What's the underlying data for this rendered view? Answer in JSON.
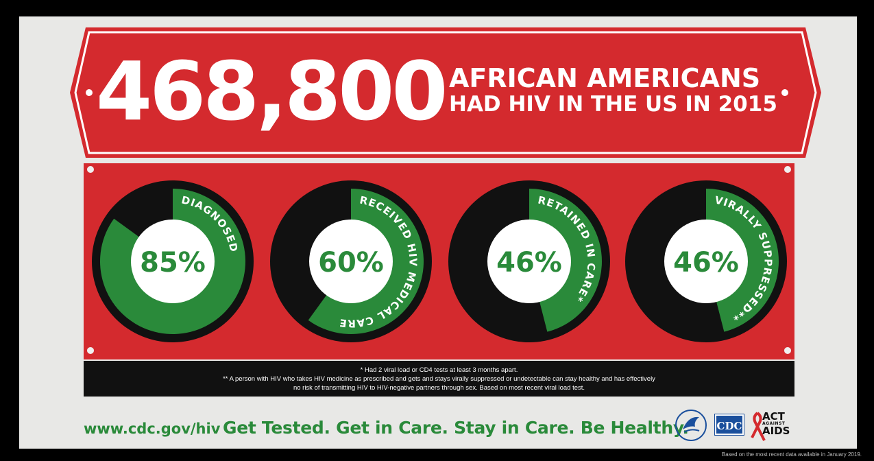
{
  "headline": {
    "number": "468,800",
    "caption_line1": "AFRICAN AMERICANS",
    "caption_line2": "HAD HIV IN THE US IN 2015"
  },
  "colors": {
    "red": "#d42a2e",
    "green": "#2a8a3a",
    "black": "#111111",
    "background": "#e8e8e6"
  },
  "gauges": [
    {
      "label": "DIAGNOSED",
      "percent_text": "85%",
      "value": 85
    },
    {
      "label": "RECEIVED HIV MEDICAL CARE",
      "percent_text": "60%",
      "value": 60
    },
    {
      "label": "RETAINED IN CARE*",
      "percent_text": "46%",
      "value": 46
    },
    {
      "label": "VIRALLY SUPPRESSED**",
      "percent_text": "46%",
      "value": 46
    }
  ],
  "footnotes": {
    "note1": "* Had 2 viral load or CD4 tests at least 3 months apart.",
    "note2": "** A person with HIV who takes HIV medicine as prescribed and gets and stays virally suppressed or undetectable can stay healthy and has effectively",
    "note3": "no risk of transmitting HIV to HIV-negative partners through sex. Based on most recent viral load test."
  },
  "footer": {
    "url": "www.cdc.gov/hiv",
    "tagline": "Get Tested. Get in Care. Stay in Care. Be Healthy.",
    "cdc_logo_text": "CDC",
    "act_logo_line1": "ACT",
    "act_logo_line2": "AGAINST",
    "act_logo_line3": "AIDS",
    "source_note": "Based on the most recent data available in January 2019."
  }
}
